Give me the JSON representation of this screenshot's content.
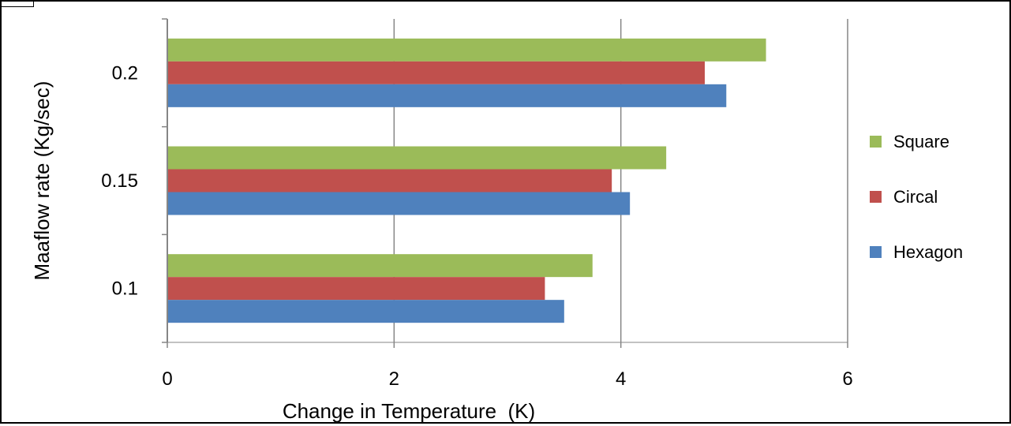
{
  "chart_data": {
    "type": "bar",
    "orientation": "horizontal",
    "title": "",
    "xlabel": "Change in Temperature  (K)",
    "ylabel": "Maaflow rate (Kg/sec)",
    "categories": [
      "0.1",
      "0.15",
      "0.2"
    ],
    "series": [
      {
        "name": "Hexagon",
        "color": "#4f81bd",
        "values": [
          3.5,
          4.08,
          4.93
        ]
      },
      {
        "name": "Circal",
        "color": "#c0504d",
        "values": [
          3.33,
          3.92,
          4.74
        ]
      },
      {
        "name": "Square",
        "color": "#9bbb59",
        "values": [
          3.75,
          4.4,
          5.28
        ]
      }
    ],
    "xlim": [
      0,
      6
    ],
    "xticks": [
      "0",
      "2",
      "4",
      "6"
    ],
    "grid": "vertical major gridlines",
    "legend_position": "right"
  }
}
